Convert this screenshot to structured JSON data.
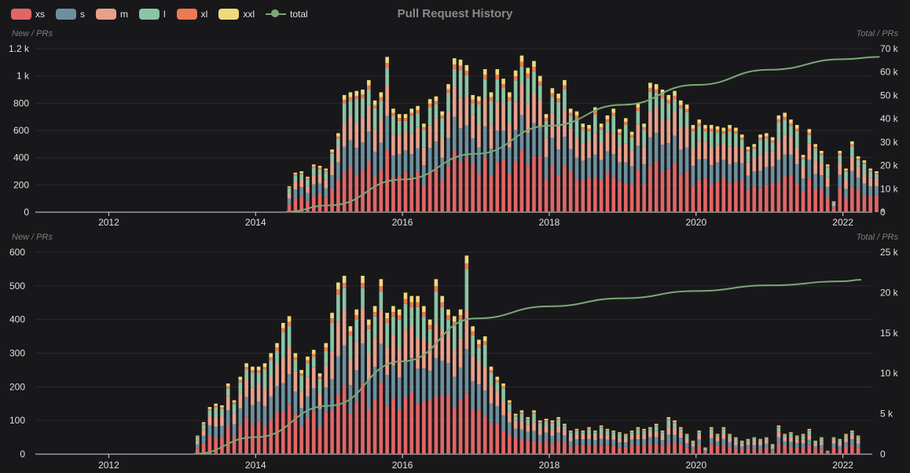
{
  "title": "Pull Request History",
  "legend": [
    {
      "key": "xs",
      "label": "xs",
      "color": "#e06666"
    },
    {
      "key": "s",
      "label": "s",
      "color": "#6c909e"
    },
    {
      "key": "m",
      "label": "m",
      "color": "#e8a08a"
    },
    {
      "key": "l",
      "label": "l",
      "color": "#8bc4a4"
    },
    {
      "key": "xl",
      "label": "xl",
      "color": "#ec7a52"
    },
    {
      "key": "xxl",
      "label": "xxl",
      "color": "#efd97a"
    },
    {
      "key": "total",
      "label": "total",
      "color": "#7aa874",
      "icon": "line-circle-icon"
    }
  ],
  "colors": {
    "background": "#18181b",
    "grid": "#2a2a2e",
    "axis": "#d8d8d8",
    "total_line": "#7aa874"
  },
  "chart_data": [
    {
      "type": "bar",
      "stacked": true,
      "ylabel_left": "New / PRs",
      "ylabel_right": "Total / PRs",
      "ylim_left": [
        0,
        1200
      ],
      "yticks_left": [
        "0",
        "200",
        "400",
        "600",
        "800",
        "1 k",
        "1.2 k"
      ],
      "ylim_right": [
        0,
        70000
      ],
      "yticks_right": [
        "0",
        "10 k",
        "20 k",
        "30 k",
        "40 k",
        "50 k",
        "60 k",
        "70 k"
      ],
      "x_ticks": [
        "2012",
        "2014",
        "2016",
        "2018",
        "2020",
        "2022"
      ],
      "grid": true,
      "monthly_totals": [
        {
          "month": "2014-06",
          "value": 190
        },
        {
          "month": "2014-07",
          "value": 290
        },
        {
          "month": "2014-08",
          "value": 300
        },
        {
          "month": "2014-09",
          "value": 260
        },
        {
          "month": "2014-10",
          "value": 350
        },
        {
          "month": "2014-11",
          "value": 340
        },
        {
          "month": "2014-12",
          "value": 320
        },
        {
          "month": "2015-01",
          "value": 460
        },
        {
          "month": "2015-02",
          "value": 580
        },
        {
          "month": "2015-03",
          "value": 860
        },
        {
          "month": "2015-04",
          "value": 880
        },
        {
          "month": "2015-05",
          "value": 890
        },
        {
          "month": "2015-06",
          "value": 900
        },
        {
          "month": "2015-07",
          "value": 970
        },
        {
          "month": "2015-08",
          "value": 820
        },
        {
          "month": "2015-09",
          "value": 880
        },
        {
          "month": "2015-10",
          "value": 1140
        },
        {
          "month": "2015-11",
          "value": 760
        },
        {
          "month": "2015-12",
          "value": 720
        },
        {
          "month": "2016-01",
          "value": 720
        },
        {
          "month": "2016-02",
          "value": 760
        },
        {
          "month": "2016-03",
          "value": 780
        },
        {
          "month": "2016-04",
          "value": 650
        },
        {
          "month": "2016-05",
          "value": 830
        },
        {
          "month": "2016-06",
          "value": 850
        },
        {
          "month": "2016-07",
          "value": 740
        },
        {
          "month": "2016-08",
          "value": 940
        },
        {
          "month": "2016-09",
          "value": 1130
        },
        {
          "month": "2016-10",
          "value": 1120
        },
        {
          "month": "2016-11",
          "value": 1080
        },
        {
          "month": "2016-12",
          "value": 860
        },
        {
          "month": "2017-01",
          "value": 850
        },
        {
          "month": "2017-02",
          "value": 1050
        },
        {
          "month": "2017-03",
          "value": 880
        },
        {
          "month": "2017-04",
          "value": 1050
        },
        {
          "month": "2017-05",
          "value": 980
        },
        {
          "month": "2017-06",
          "value": 880
        },
        {
          "month": "2017-07",
          "value": 1040
        },
        {
          "month": "2017-08",
          "value": 1150
        },
        {
          "month": "2017-09",
          "value": 1060
        },
        {
          "month": "2017-10",
          "value": 1110
        },
        {
          "month": "2017-11",
          "value": 1000
        },
        {
          "month": "2017-12",
          "value": 720
        },
        {
          "month": "2018-01",
          "value": 910
        },
        {
          "month": "2018-02",
          "value": 870
        },
        {
          "month": "2018-03",
          "value": 970
        },
        {
          "month": "2018-04",
          "value": 760
        },
        {
          "month": "2018-05",
          "value": 740
        },
        {
          "month": "2018-06",
          "value": 650
        },
        {
          "month": "2018-07",
          "value": 640
        },
        {
          "month": "2018-08",
          "value": 770
        },
        {
          "month": "2018-09",
          "value": 650
        },
        {
          "month": "2018-10",
          "value": 710
        },
        {
          "month": "2018-11",
          "value": 760
        },
        {
          "month": "2018-12",
          "value": 610
        },
        {
          "month": "2019-01",
          "value": 690
        },
        {
          "month": "2019-02",
          "value": 590
        },
        {
          "month": "2019-03",
          "value": 800
        },
        {
          "month": "2019-04",
          "value": 650
        },
        {
          "month": "2019-05",
          "value": 950
        },
        {
          "month": "2019-06",
          "value": 940
        },
        {
          "month": "2019-07",
          "value": 900
        },
        {
          "month": "2019-08",
          "value": 860
        },
        {
          "month": "2019-09",
          "value": 890
        },
        {
          "month": "2019-10",
          "value": 820
        },
        {
          "month": "2019-11",
          "value": 790
        },
        {
          "month": "2019-12",
          "value": 640
        },
        {
          "month": "2020-01",
          "value": 680
        },
        {
          "month": "2020-02",
          "value": 640
        },
        {
          "month": "2020-03",
          "value": 640
        },
        {
          "month": "2020-04",
          "value": 630
        },
        {
          "month": "2020-05",
          "value": 620
        },
        {
          "month": "2020-06",
          "value": 640
        },
        {
          "month": "2020-07",
          "value": 620
        },
        {
          "month": "2020-08",
          "value": 570
        },
        {
          "month": "2020-09",
          "value": 480
        },
        {
          "month": "2020-10",
          "value": 500
        },
        {
          "month": "2020-11",
          "value": 570
        },
        {
          "month": "2020-12",
          "value": 580
        },
        {
          "month": "2021-01",
          "value": 550
        },
        {
          "month": "2021-02",
          "value": 710
        },
        {
          "month": "2021-03",
          "value": 730
        },
        {
          "month": "2021-04",
          "value": 680
        },
        {
          "month": "2021-05",
          "value": 640
        },
        {
          "month": "2021-06",
          "value": 420
        },
        {
          "month": "2021-07",
          "value": 610
        },
        {
          "month": "2021-08",
          "value": 500
        },
        {
          "month": "2021-09",
          "value": 450
        },
        {
          "month": "2021-10",
          "value": 350
        },
        {
          "month": "2021-11",
          "value": 80
        },
        {
          "month": "2021-12",
          "value": 450
        },
        {
          "month": "2022-01",
          "value": 320
        },
        {
          "month": "2022-02",
          "value": 520
        },
        {
          "month": "2022-03",
          "value": 410
        },
        {
          "month": "2022-04",
          "value": 380
        },
        {
          "month": "2022-05",
          "value": 320
        },
        {
          "month": "2022-06",
          "value": 300
        },
        {
          "month": "2022-07",
          "value": 20
        }
      ],
      "size_mix": {
        "xs": 0.36,
        "s": 0.22,
        "m": 0.2,
        "l": 0.15,
        "xl": 0.03,
        "xxl": 0.04
      },
      "cumulative_total": [
        {
          "month": "2014-06",
          "value": 190
        },
        {
          "month": "2015-01",
          "value": 2900
        },
        {
          "month": "2016-01",
          "value": 14000
        },
        {
          "month": "2017-01",
          "value": 25000
        },
        {
          "month": "2018-01",
          "value": 37000
        },
        {
          "month": "2019-01",
          "value": 46000
        },
        {
          "month": "2020-01",
          "value": 54500
        },
        {
          "month": "2021-01",
          "value": 61000
        },
        {
          "month": "2022-01",
          "value": 65500
        },
        {
          "month": "2022-07",
          "value": 66500
        }
      ]
    },
    {
      "type": "bar",
      "stacked": true,
      "ylabel_left": "New / PRs",
      "ylabel_right": "Total / PRs",
      "ylim_left": [
        0,
        600
      ],
      "yticks_left": [
        "0",
        "100",
        "200",
        "300",
        "400",
        "500",
        "600"
      ],
      "ylim_right": [
        0,
        25000
      ],
      "yticks_right": [
        "0",
        "5 k",
        "10 k",
        "15 k",
        "20 k",
        "25 k"
      ],
      "x_ticks": [
        "2012",
        "2014",
        "2016",
        "2018",
        "2020",
        "2022"
      ],
      "grid": true,
      "monthly_totals": [
        {
          "month": "2013-03",
          "value": 55
        },
        {
          "month": "2013-04",
          "value": 95
        },
        {
          "month": "2013-05",
          "value": 140
        },
        {
          "month": "2013-06",
          "value": 150
        },
        {
          "month": "2013-07",
          "value": 145
        },
        {
          "month": "2013-08",
          "value": 210
        },
        {
          "month": "2013-09",
          "value": 160
        },
        {
          "month": "2013-10",
          "value": 230
        },
        {
          "month": "2013-11",
          "value": 270
        },
        {
          "month": "2013-12",
          "value": 260
        },
        {
          "month": "2014-01",
          "value": 260
        },
        {
          "month": "2014-02",
          "value": 270
        },
        {
          "month": "2014-03",
          "value": 300
        },
        {
          "month": "2014-04",
          "value": 330
        },
        {
          "month": "2014-05",
          "value": 390
        },
        {
          "month": "2014-06",
          "value": 410
        },
        {
          "month": "2014-07",
          "value": 300
        },
        {
          "month": "2014-08",
          "value": 250
        },
        {
          "month": "2014-09",
          "value": 290
        },
        {
          "month": "2014-10",
          "value": 310
        },
        {
          "month": "2014-11",
          "value": 240
        },
        {
          "month": "2014-12",
          "value": 330
        },
        {
          "month": "2015-01",
          "value": 420
        },
        {
          "month": "2015-02",
          "value": 510
        },
        {
          "month": "2015-03",
          "value": 530
        },
        {
          "month": "2015-04",
          "value": 380
        },
        {
          "month": "2015-05",
          "value": 430
        },
        {
          "month": "2015-06",
          "value": 530
        },
        {
          "month": "2015-07",
          "value": 400
        },
        {
          "month": "2015-08",
          "value": 440
        },
        {
          "month": "2015-09",
          "value": 520
        },
        {
          "month": "2015-10",
          "value": 420
        },
        {
          "month": "2015-11",
          "value": 440
        },
        {
          "month": "2015-12",
          "value": 430
        },
        {
          "month": "2016-01",
          "value": 480
        },
        {
          "month": "2016-02",
          "value": 470
        },
        {
          "month": "2016-03",
          "value": 470
        },
        {
          "month": "2016-04",
          "value": 440
        },
        {
          "month": "2016-05",
          "value": 400
        },
        {
          "month": "2016-06",
          "value": 520
        },
        {
          "month": "2016-07",
          "value": 470
        },
        {
          "month": "2016-08",
          "value": 430
        },
        {
          "month": "2016-09",
          "value": 410
        },
        {
          "month": "2016-10",
          "value": 430
        },
        {
          "month": "2016-11",
          "value": 590
        },
        {
          "month": "2016-12",
          "value": 380
        },
        {
          "month": "2017-01",
          "value": 340
        },
        {
          "month": "2017-02",
          "value": 350
        },
        {
          "month": "2017-03",
          "value": 260
        },
        {
          "month": "2017-04",
          "value": 230
        },
        {
          "month": "2017-05",
          "value": 210
        },
        {
          "month": "2017-06",
          "value": 160
        },
        {
          "month": "2017-07",
          "value": 120
        },
        {
          "month": "2017-08",
          "value": 130
        },
        {
          "month": "2017-09",
          "value": 110
        },
        {
          "month": "2017-10",
          "value": 130
        },
        {
          "month": "2017-11",
          "value": 100
        },
        {
          "month": "2017-12",
          "value": 105
        },
        {
          "month": "2018-01",
          "value": 100
        },
        {
          "month": "2018-02",
          "value": 110
        },
        {
          "month": "2018-03",
          "value": 90
        },
        {
          "month": "2018-04",
          "value": 70
        },
        {
          "month": "2018-05",
          "value": 75
        },
        {
          "month": "2018-06",
          "value": 70
        },
        {
          "month": "2018-07",
          "value": 80
        },
        {
          "month": "2018-08",
          "value": 70
        },
        {
          "month": "2018-09",
          "value": 85
        },
        {
          "month": "2018-10",
          "value": 75
        },
        {
          "month": "2018-11",
          "value": 70
        },
        {
          "month": "2018-12",
          "value": 65
        },
        {
          "month": "2019-01",
          "value": 60
        },
        {
          "month": "2019-02",
          "value": 70
        },
        {
          "month": "2019-03",
          "value": 80
        },
        {
          "month": "2019-04",
          "value": 75
        },
        {
          "month": "2019-05",
          "value": 80
        },
        {
          "month": "2019-06",
          "value": 90
        },
        {
          "month": "2019-07",
          "value": 70
        },
        {
          "month": "2019-08",
          "value": 110
        },
        {
          "month": "2019-09",
          "value": 100
        },
        {
          "month": "2019-10",
          "value": 80
        },
        {
          "month": "2019-11",
          "value": 60
        },
        {
          "month": "2019-12",
          "value": 40
        },
        {
          "month": "2020-01",
          "value": 70
        },
        {
          "month": "2020-02",
          "value": 20
        },
        {
          "month": "2020-03",
          "value": 80
        },
        {
          "month": "2020-04",
          "value": 60
        },
        {
          "month": "2020-05",
          "value": 80
        },
        {
          "month": "2020-06",
          "value": 60
        },
        {
          "month": "2020-07",
          "value": 50
        },
        {
          "month": "2020-08",
          "value": 40
        },
        {
          "month": "2020-09",
          "value": 45
        },
        {
          "month": "2020-10",
          "value": 50
        },
        {
          "month": "2020-11",
          "value": 45
        },
        {
          "month": "2020-12",
          "value": 50
        },
        {
          "month": "2021-01",
          "value": 30
        },
        {
          "month": "2021-02",
          "value": 85
        },
        {
          "month": "2021-03",
          "value": 60
        },
        {
          "month": "2021-04",
          "value": 65
        },
        {
          "month": "2021-05",
          "value": 55
        },
        {
          "month": "2021-06",
          "value": 60
        },
        {
          "month": "2021-07",
          "value": 75
        },
        {
          "month": "2021-08",
          "value": 40
        },
        {
          "month": "2021-09",
          "value": 50
        },
        {
          "month": "2021-10",
          "value": 10
        },
        {
          "month": "2021-11",
          "value": 50
        },
        {
          "month": "2021-12",
          "value": 45
        },
        {
          "month": "2022-01",
          "value": 60
        },
        {
          "month": "2022-02",
          "value": 70
        },
        {
          "month": "2022-03",
          "value": 55
        }
      ],
      "size_mix": {
        "xs": 0.36,
        "s": 0.22,
        "m": 0.2,
        "l": 0.15,
        "xl": 0.03,
        "xxl": 0.04
      },
      "cumulative_total": [
        {
          "month": "2013-03",
          "value": 55
        },
        {
          "month": "2014-01",
          "value": 2100
        },
        {
          "month": "2015-01",
          "value": 6000
        },
        {
          "month": "2016-01",
          "value": 11500
        },
        {
          "month": "2017-01",
          "value": 16800
        },
        {
          "month": "2018-01",
          "value": 18300
        },
        {
          "month": "2019-01",
          "value": 19300
        },
        {
          "month": "2020-01",
          "value": 20200
        },
        {
          "month": "2021-01",
          "value": 20900
        },
        {
          "month": "2022-01",
          "value": 21400
        },
        {
          "month": "2022-04",
          "value": 21600
        }
      ]
    }
  ]
}
